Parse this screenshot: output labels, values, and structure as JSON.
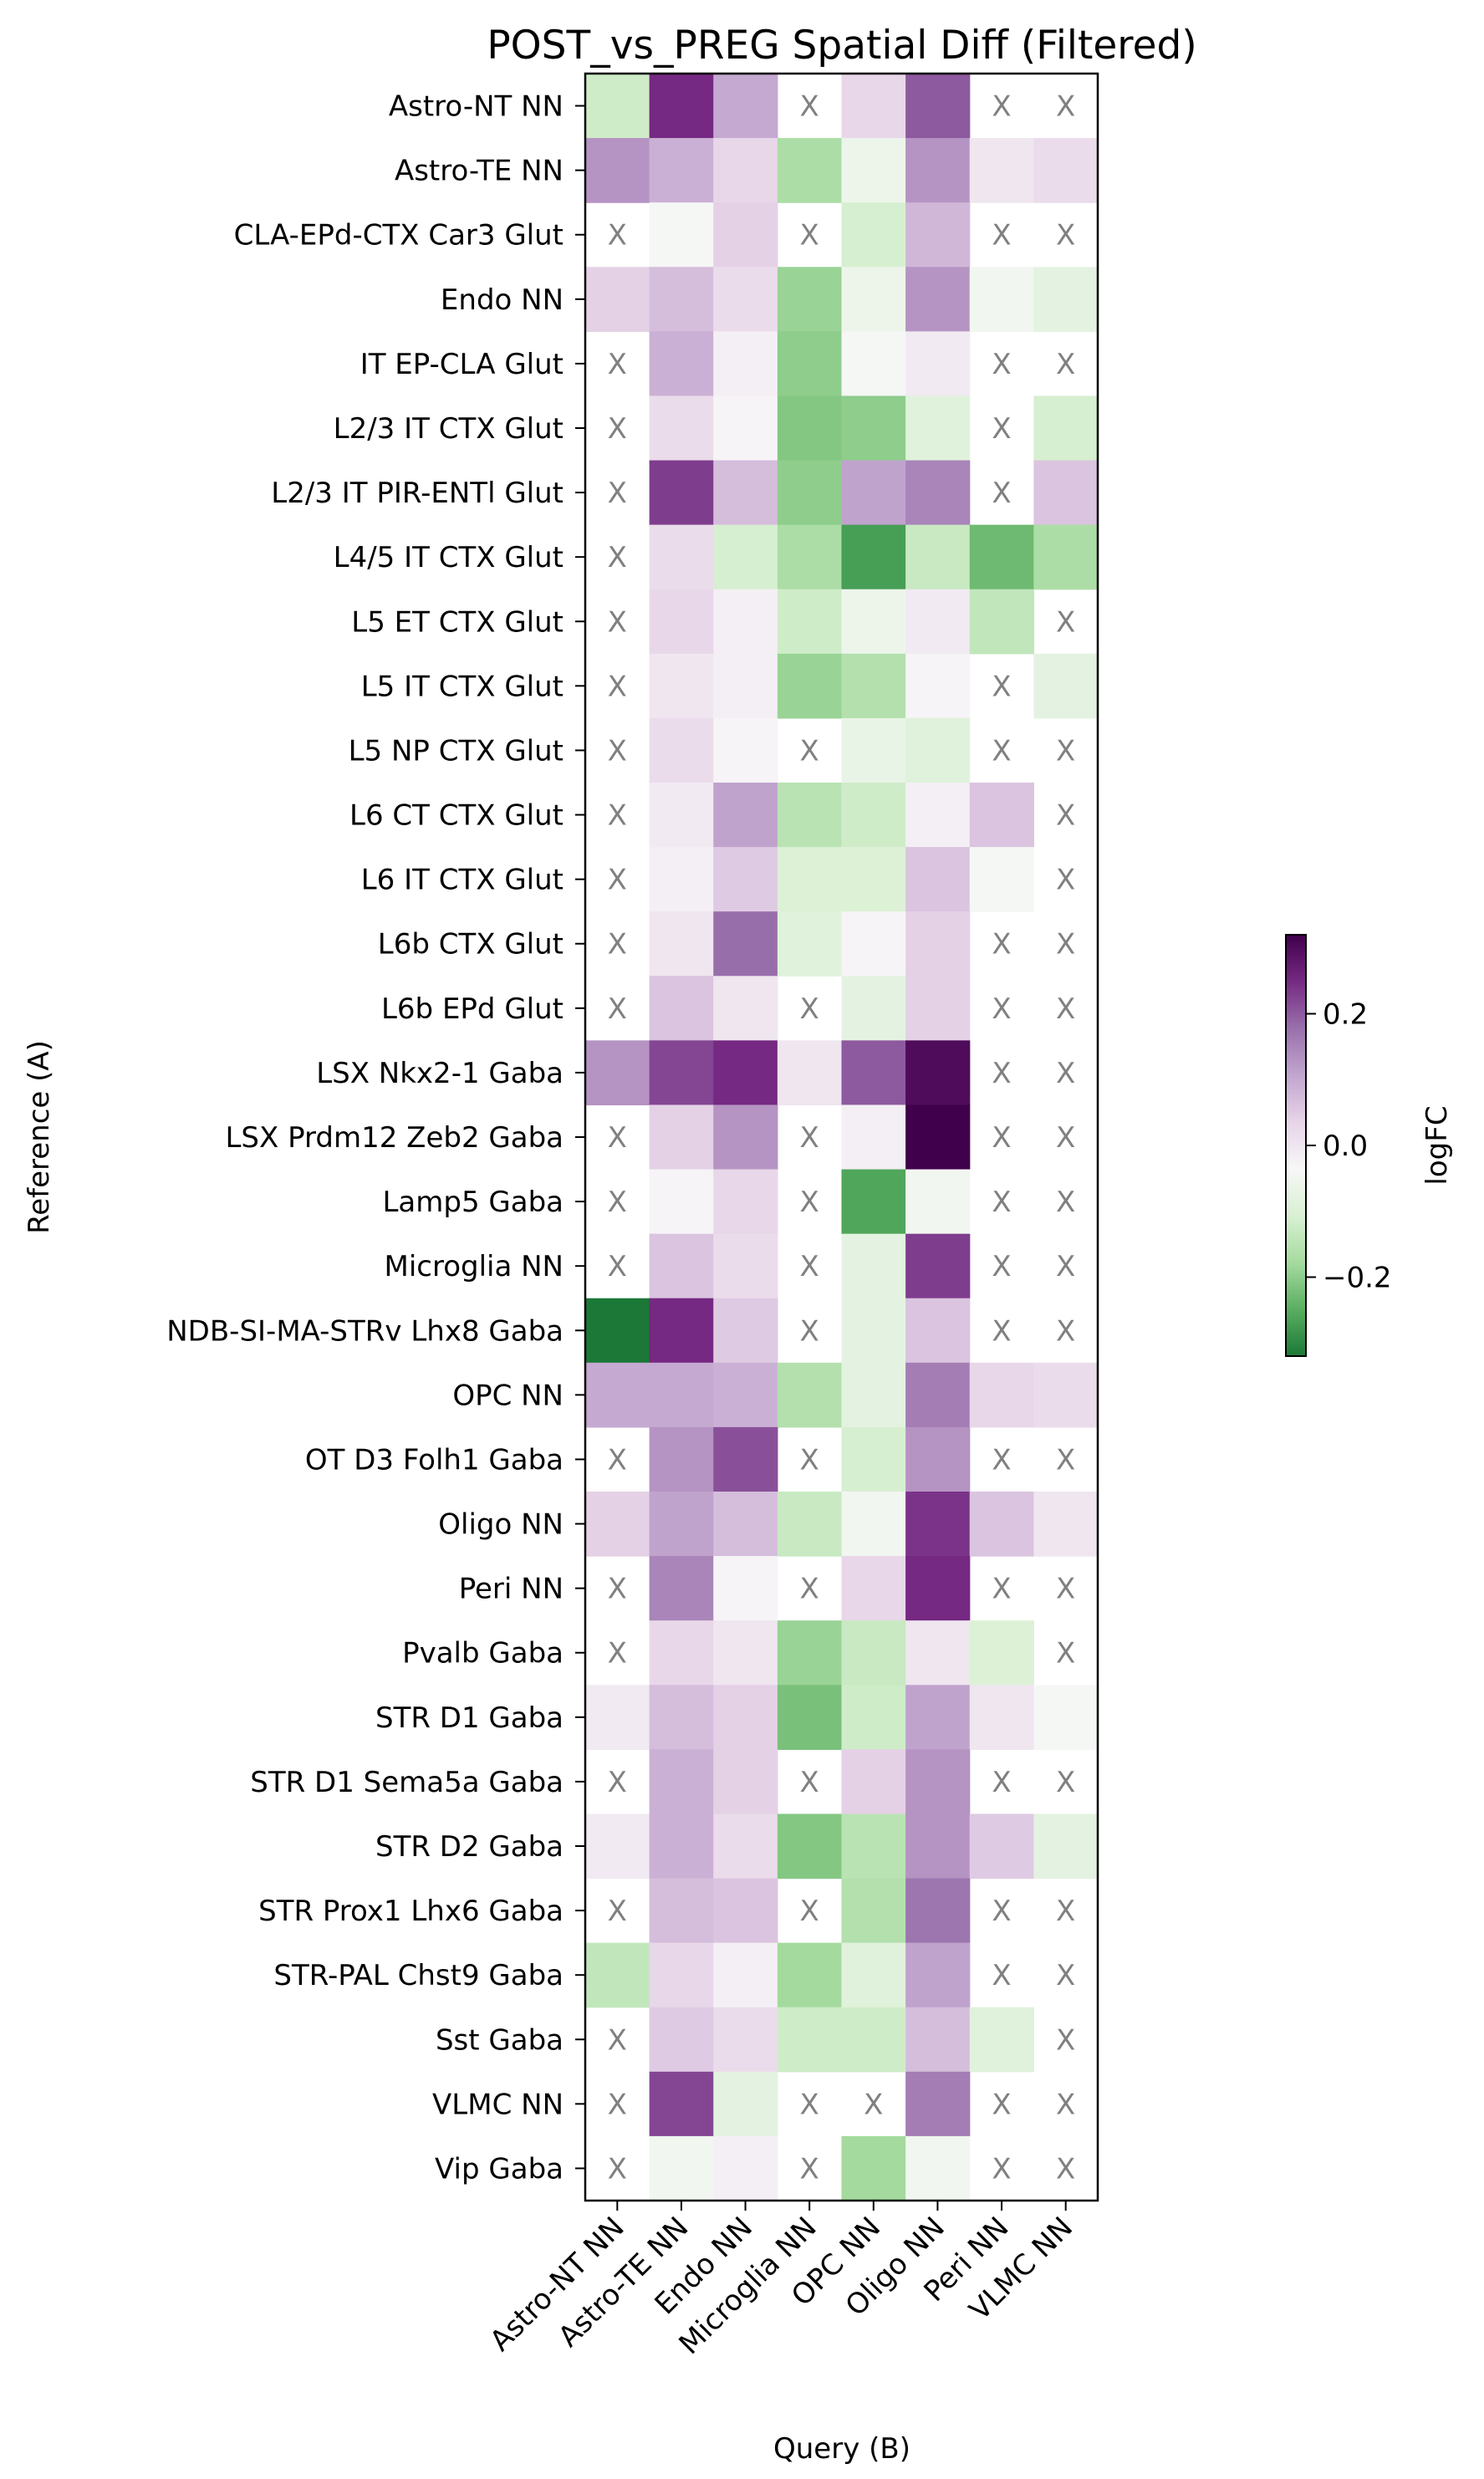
{
  "chart_data": {
    "type": "heatmap",
    "title": "POST_vs_PREG Spatial Diff (Filtered)",
    "xlabel": "Query (B)",
    "ylabel": "Reference (A)",
    "missing_marker": "X",
    "colorbar": {
      "label": "logFC",
      "vmin": -0.32,
      "vmax": 0.32,
      "ticks": [
        -0.2,
        0.0,
        0.2
      ],
      "tick_labels": [
        "−0.2",
        "0.0",
        "0.2"
      ],
      "colormap": "PRGn_reversed",
      "stops": [
        "#1b7837",
        "#5aae61",
        "#a6dba0",
        "#d9f0d3",
        "#f7f7f7",
        "#e7d4e8",
        "#c2a5cf",
        "#9970ab",
        "#762a83",
        "#40004b"
      ],
      "placement": "right"
    },
    "x_categories": [
      "Astro-NT NN",
      "Astro-TE NN",
      "Endo NN",
      "Microglia NN",
      "OPC NN",
      "Oligo NN",
      "Peri NN",
      "VLMC NN"
    ],
    "y_categories": [
      "Astro-NT NN",
      "Astro-TE NN",
      "CLA-EPd-CTX Car3 Glut",
      "Endo NN",
      "IT EP-CLA Glut",
      "L2/3 IT CTX Glut",
      "L2/3 IT PIR-ENTl Glut",
      "L4/5 IT CTX Glut",
      "L5 ET CTX Glut",
      "L5 IT CTX Glut",
      "L5 NP CTX Glut",
      "L6 CT CTX Glut",
      "L6 IT CTX Glut",
      "L6b CTX Glut",
      "L6b EPd Glut",
      "LSX Nkx2-1 Gaba",
      "LSX Prdm12 Zeb2 Gaba",
      "Lamp5 Gaba",
      "Microglia NN",
      "NDB-SI-MA-STRv Lhx8 Gaba",
      "OPC NN",
      "OT D3 Folh1 Gaba",
      "Oligo NN",
      "Peri NN",
      "Pvalb Gaba",
      "STR D1 Gaba",
      "STR D1 Sema5a Gaba",
      "STR D2 Gaba",
      "STR Prox1 Lhx6 Gaba",
      "STR-PAL Chst9 Gaba",
      "Sst Gaba",
      "VLMC NN",
      "Vip Gaba"
    ],
    "values": [
      [
        -0.12,
        0.25,
        0.1,
        null,
        0.03,
        0.2,
        null,
        null
      ],
      [
        0.13,
        0.09,
        0.03,
        -0.17,
        -0.06,
        0.13,
        0.0,
        0.02
      ],
      [
        null,
        -0.04,
        0.04,
        null,
        -0.11,
        0.08,
        null,
        null
      ],
      [
        0.04,
        0.07,
        0.02,
        -0.19,
        -0.06,
        0.13,
        -0.05,
        -0.08
      ],
      [
        null,
        0.09,
        -0.02,
        -0.2,
        -0.04,
        -0.01,
        null,
        null
      ],
      [
        null,
        0.02,
        -0.03,
        -0.21,
        -0.2,
        -0.09,
        null,
        -0.11
      ],
      [
        null,
        0.23,
        0.07,
        -0.2,
        0.11,
        0.15,
        null,
        0.06
      ],
      [
        null,
        0.02,
        -0.11,
        -0.17,
        -0.27,
        -0.13,
        -0.23,
        -0.17
      ],
      [
        null,
        0.03,
        -0.02,
        -0.12,
        -0.06,
        -0.01,
        -0.14,
        null
      ],
      [
        null,
        0.0,
        -0.02,
        -0.19,
        -0.16,
        -0.03,
        null,
        -0.08
      ],
      [
        null,
        0.02,
        -0.03,
        null,
        -0.07,
        -0.09,
        null,
        null
      ],
      [
        null,
        -0.01,
        0.11,
        -0.15,
        -0.12,
        -0.02,
        0.06,
        null
      ],
      [
        null,
        -0.02,
        0.05,
        -0.1,
        -0.1,
        0.06,
        -0.04,
        null
      ],
      [
        null,
        0.0,
        0.18,
        -0.09,
        -0.03,
        0.04,
        null,
        null
      ],
      [
        null,
        0.06,
        0.0,
        null,
        -0.08,
        0.04,
        null,
        null
      ],
      [
        0.13,
        0.22,
        0.25,
        0.0,
        0.2,
        0.3,
        null,
        null
      ],
      [
        null,
        0.04,
        0.13,
        null,
        -0.02,
        0.33,
        null,
        null
      ],
      [
        null,
        -0.03,
        0.03,
        null,
        -0.26,
        -0.05,
        null,
        null
      ],
      [
        null,
        0.06,
        0.02,
        null,
        -0.08,
        0.23,
        null,
        null
      ],
      [
        -0.32,
        0.25,
        0.05,
        null,
        -0.08,
        0.06,
        null,
        null
      ],
      [
        0.1,
        0.1,
        0.09,
        -0.16,
        -0.08,
        0.16,
        0.03,
        0.02
      ],
      [
        null,
        0.13,
        0.21,
        null,
        -0.11,
        0.13,
        null,
        null
      ],
      [
        0.04,
        0.11,
        0.07,
        -0.13,
        -0.05,
        0.24,
        0.06,
        0.0
      ],
      [
        null,
        0.15,
        -0.03,
        null,
        0.03,
        0.25,
        null,
        null
      ],
      [
        null,
        0.03,
        0.0,
        -0.19,
        -0.13,
        0.0,
        -0.1,
        null
      ],
      [
        -0.01,
        0.07,
        0.04,
        -0.22,
        -0.12,
        0.11,
        0.0,
        -0.04
      ],
      [
        null,
        0.09,
        0.04,
        null,
        0.04,
        0.13,
        null,
        null
      ],
      [
        -0.01,
        0.09,
        0.02,
        -0.21,
        -0.15,
        0.13,
        0.05,
        -0.08
      ],
      [
        null,
        0.07,
        0.06,
        null,
        -0.16,
        0.17,
        null,
        null
      ],
      [
        -0.14,
        0.03,
        -0.02,
        -0.18,
        -0.09,
        0.11,
        null,
        null
      ],
      [
        null,
        0.05,
        0.02,
        -0.12,
        -0.12,
        0.07,
        -0.09,
        null
      ],
      [
        null,
        0.22,
        -0.08,
        null,
        null,
        0.16,
        null,
        null
      ],
      [
        null,
        -0.05,
        -0.02,
        null,
        -0.18,
        -0.05,
        null,
        null
      ]
    ]
  }
}
